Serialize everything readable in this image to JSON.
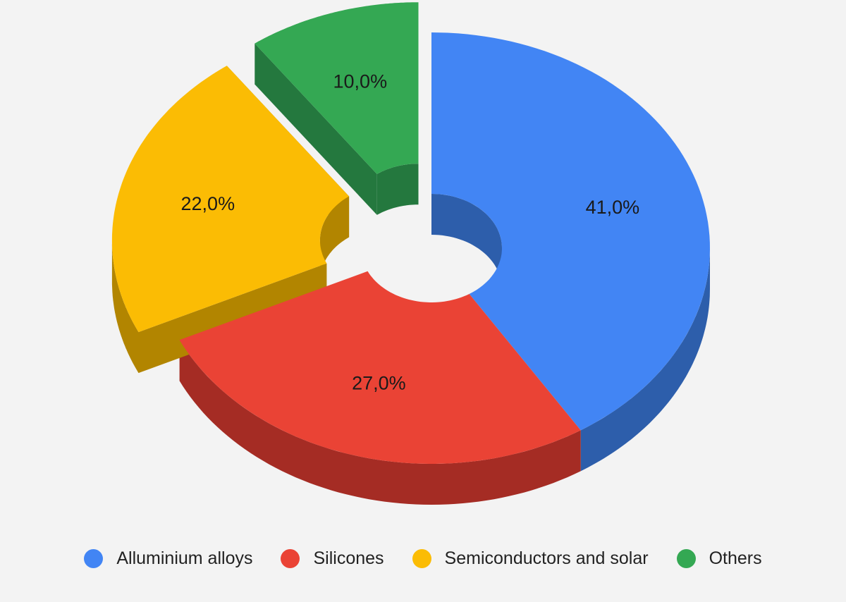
{
  "chart_data": {
    "type": "pie",
    "style": "3d-donut",
    "categories": [
      "Alluminium alloys",
      "Silicones",
      "Semiconductors and solar",
      "Others"
    ],
    "values": [
      41.0,
      27.0,
      22.0,
      10.0
    ],
    "value_labels": [
      "41,0%",
      "27,0%",
      "22,0%",
      "10,0%"
    ],
    "exploded": [
      false,
      false,
      true,
      true
    ],
    "colors": [
      "#4285f4",
      "#ea4335",
      "#fbbc04",
      "#34a853"
    ],
    "side_colors": [
      "#2d5eab",
      "#a52c24",
      "#b28500",
      "#24783e"
    ],
    "legend_position": "bottom",
    "title": ""
  }
}
